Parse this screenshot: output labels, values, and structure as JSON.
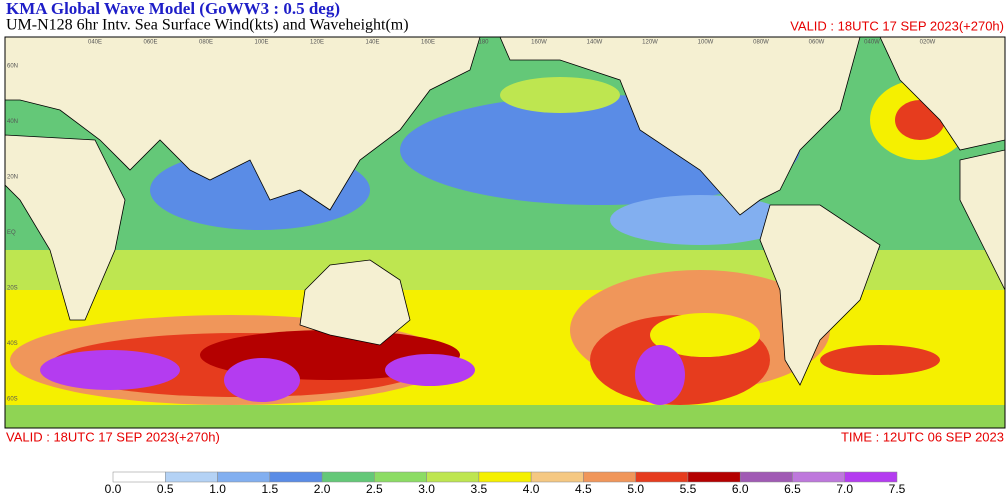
{
  "header": {
    "title": "KMA  Global Wave Model (GoWW3 : 0.5 deg)",
    "subtitle": "UM-N128  6hr Intv. Sea Surface Wind(kts) and Waveheight(m)",
    "valid": "VALID : 18UTC 17 SEP 2023(+270h)"
  },
  "map": {
    "lon_labels": [
      "040E",
      "060E",
      "080E",
      "100E",
      "120E",
      "140E",
      "160E",
      "180",
      "160W",
      "140W",
      "120W",
      "100W",
      "080W",
      "060W",
      "040W",
      "020W"
    ],
    "lat_labels": [
      "60N",
      "40N",
      "20N",
      "EQ",
      "20S",
      "40S",
      "60S"
    ]
  },
  "footer": {
    "valid": "VALID : 18UTC 17 SEP 2023(+270h)",
    "time": "TIME : 12UTC 06 SEP 2023"
  },
  "colorbar": {
    "labels": [
      "0.0",
      "0.5",
      "1.0",
      "1.5",
      "2.0",
      "2.5",
      "3.0",
      "3.5",
      "4.0",
      "4.5",
      "5.0",
      "5.5",
      "6.0",
      "6.5",
      "7.0",
      "7.5"
    ],
    "colors": [
      "#ffffff",
      "#b4d2f5",
      "#82aff0",
      "#5a8ce6",
      "#64c878",
      "#8cdc64",
      "#bee650",
      "#f5f000",
      "#f5c882",
      "#f0965a",
      "#e63c1e",
      "#b40000",
      "#a05ab4",
      "#be78dc",
      "#b43cf0"
    ]
  }
}
